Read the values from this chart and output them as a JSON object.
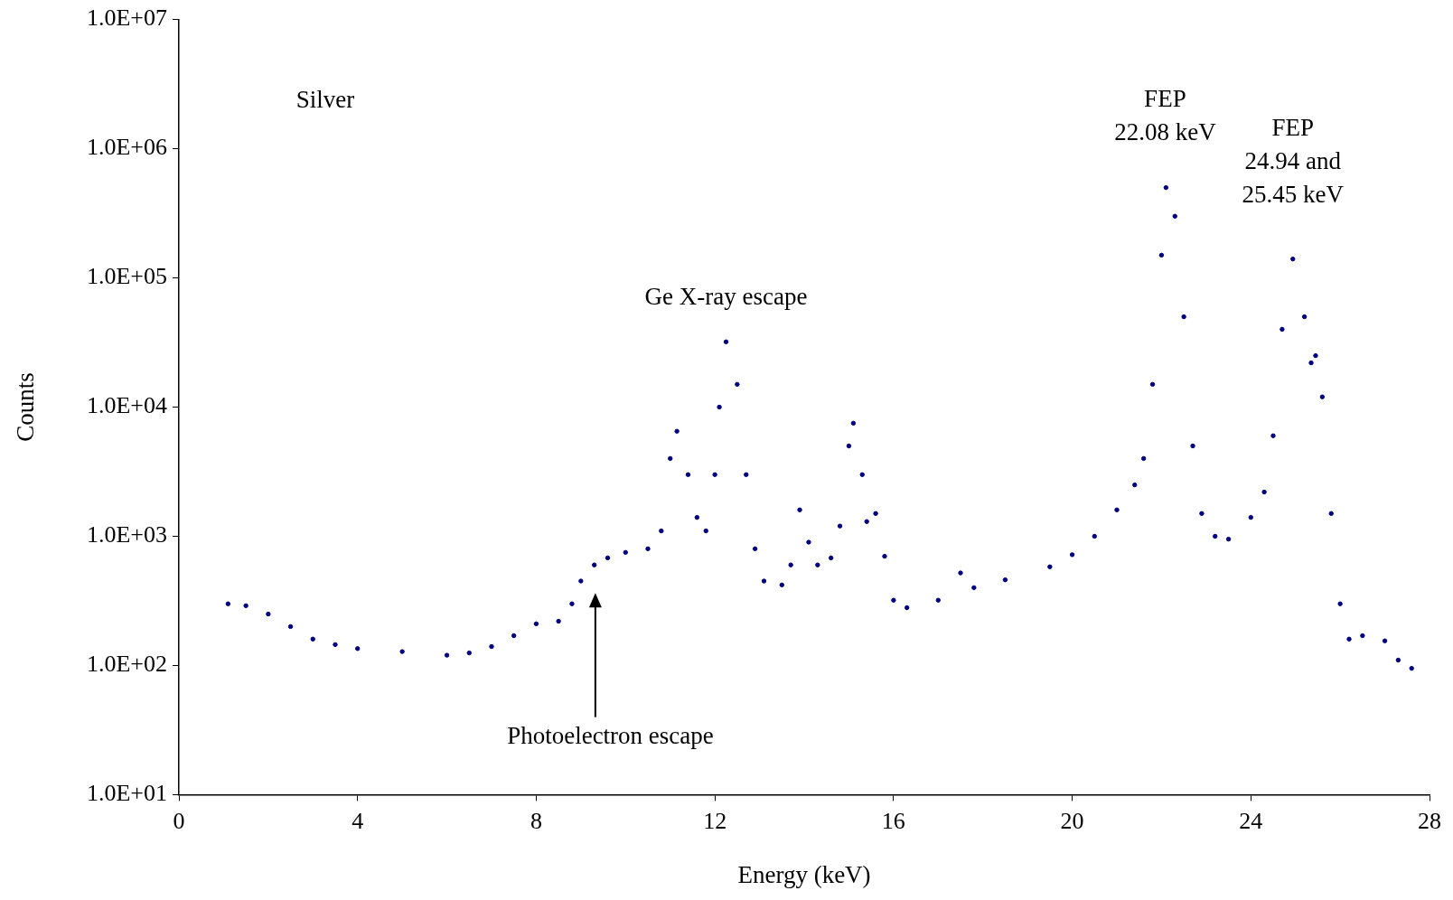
{
  "chart_data": {
    "type": "scatter",
    "xlabel": "Energy (keV)",
    "ylabel": "Counts",
    "log": "y",
    "grid": false,
    "legend": false,
    "marker": "circle",
    "xlim": [
      0,
      28
    ],
    "xticks": [
      0,
      4,
      8,
      12,
      16,
      20,
      24,
      28
    ],
    "ylim": [
      10,
      10000000
    ],
    "yticks": [
      {
        "value": 10,
        "label": "1.0E+01"
      },
      {
        "value": 100,
        "label": "1.0E+02"
      },
      {
        "value": 1000,
        "label": "1.0E+03"
      },
      {
        "value": 10000,
        "label": "1.0E+04"
      },
      {
        "value": 100000,
        "label": "1.0E+05"
      },
      {
        "value": 1000000,
        "label": "1.0E+06"
      },
      {
        "value": 10000000,
        "label": "1.0E+07"
      }
    ],
    "annotations": [
      "Silver",
      {
        "text": "Ge X-ray escape",
        "x": 12.25,
        "y": 32000
      },
      {
        "text": "FEP\n22.08 keV",
        "x": 22.08,
        "y": 500000
      },
      {
        "text": "FEP\n24.94 and\n25.45 keV",
        "x": 24.94,
        "y": 140000
      },
      "Photoelectron escape"
    ],
    "series": [
      {
        "color": "#000080",
        "x": [
          1.1,
          1.5,
          2.0,
          2.5,
          3.0,
          3.5,
          4.0,
          5.0,
          6.0,
          6.5,
          7.0,
          7.5,
          8.0,
          8.5,
          8.8,
          9.0,
          9.3,
          9.6,
          10.0,
          10.5,
          10.8,
          11.0,
          11.15,
          11.4,
          11.6,
          11.8,
          12.0,
          12.1,
          12.25,
          12.5,
          12.7,
          12.9,
          13.1,
          13.5,
          13.7,
          13.9,
          14.1,
          14.3,
          14.6,
          14.8,
          15.0,
          15.1,
          15.3,
          15.4,
          15.6,
          15.8,
          16.0,
          16.3,
          17.0,
          17.5,
          17.8,
          18.5,
          19.5,
          20.0,
          20.5,
          21.0,
          21.4,
          21.6,
          21.8,
          22.0,
          22.1,
          22.3,
          22.5,
          22.7,
          22.9,
          23.2,
          23.5,
          24.0,
          24.3,
          24.5,
          24.7,
          24.94,
          25.2,
          25.35,
          25.45,
          25.6,
          25.8,
          26.0,
          26.2,
          26.5,
          27.0,
          27.3,
          27.6
        ],
        "values": [
          300,
          290,
          250,
          200,
          160,
          145,
          135,
          128,
          120,
          125,
          140,
          170,
          210,
          220,
          300,
          450,
          600,
          680,
          750,
          800,
          1100,
          4000,
          6500,
          3000,
          1400,
          1100,
          3000,
          10000,
          32000,
          15000,
          3000,
          800,
          450,
          420,
          600,
          1600,
          900,
          600,
          680,
          1200,
          5000,
          7500,
          3000,
          1300,
          1500,
          700,
          320,
          280,
          320,
          520,
          400,
          460,
          580,
          720,
          1000,
          1600,
          2500,
          4000,
          15000,
          150000,
          500000,
          300000,
          50000,
          5000,
          1500,
          1000,
          950,
          1400,
          2200,
          6000,
          40000,
          140000,
          50000,
          22000,
          25000,
          12000,
          1500,
          300,
          160,
          170,
          155,
          110,
          95
        ]
      }
    ]
  }
}
